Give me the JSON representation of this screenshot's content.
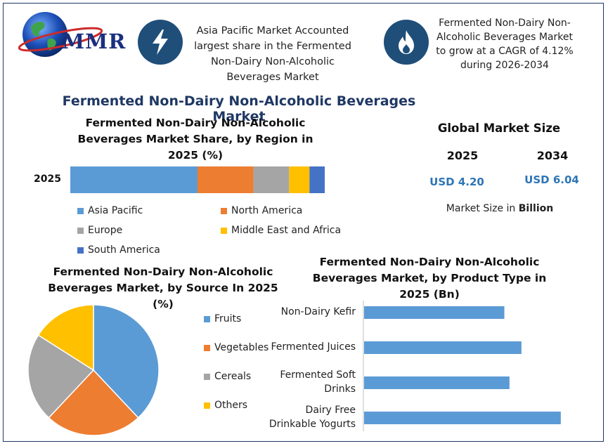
{
  "logo": {
    "text": "MMR"
  },
  "header": {
    "info_left": "Asia Pacific Market Accounted largest share in the Fermented Non-Dairy Non-Alcoholic Beverages Market",
    "info_right": "Fermented Non-Dairy Non-Alcoholic Beverages Market to grow at a CAGR of 4.12% during 2026-2034",
    "left_icon": "lightning-icon",
    "right_icon": "flame-icon",
    "icon_bg_color": "#1f4e79"
  },
  "main_title": "Fermented Non-Dairy Non-Alcoholic Beverages Market",
  "market_size": {
    "title": "Global Market Size",
    "year_a": "2025",
    "year_b": "2034",
    "value_a": "USD 4.20",
    "value_b": "USD 6.04",
    "note_prefix": "Market Size in ",
    "note_bold": "Billion"
  },
  "chart_data": [
    {
      "type": "bar",
      "orientation": "horizontal-stacked",
      "title": "Fermented Non-Dairy Non-Alcoholic Beverages Market Share, by Region in 2025 (%)",
      "categories": [
        "2025"
      ],
      "series": [
        {
          "name": "Asia Pacific",
          "values": [
            50
          ],
          "color": "#5b9bd5"
        },
        {
          "name": "North America",
          "values": [
            22
          ],
          "color": "#ed7d31"
        },
        {
          "name": "Europe",
          "values": [
            14
          ],
          "color": "#a5a5a5"
        },
        {
          "name": "Middle East and Africa",
          "values": [
            8
          ],
          "color": "#ffc000"
        },
        {
          "name": "South America",
          "values": [
            6
          ],
          "color": "#4472c4"
        }
      ],
      "xlim": [
        0,
        100
      ],
      "legend": "bottom"
    },
    {
      "type": "pie",
      "title": "Fermented Non-Dairy Non-Alcoholic Beverages Market, by Source In 2025 (%)",
      "slices": [
        {
          "name": "Fruits",
          "value": 38,
          "color": "#5b9bd5"
        },
        {
          "name": "Vegetables",
          "value": 24,
          "color": "#ed7d31"
        },
        {
          "name": "Cereals",
          "value": 22,
          "color": "#a5a5a5"
        },
        {
          "name": "Others",
          "value": 16,
          "color": "#ffc000"
        }
      ],
      "legend": "right"
    },
    {
      "type": "bar",
      "orientation": "horizontal",
      "title": "Fermented Non-Dairy Non-Alcoholic Beverages Market, by Product Type in 2025 (Bn)",
      "categories": [
        "Non-Dairy Kefir",
        "Fermented Juices",
        "Fermented Soft Drinks",
        "Dairy Free Drinkable Yogurts"
      ],
      "values": [
        0.82,
        0.92,
        0.85,
        1.15
      ],
      "color": "#5b9bd5",
      "xlim": [
        0,
        1.2
      ]
    }
  ]
}
